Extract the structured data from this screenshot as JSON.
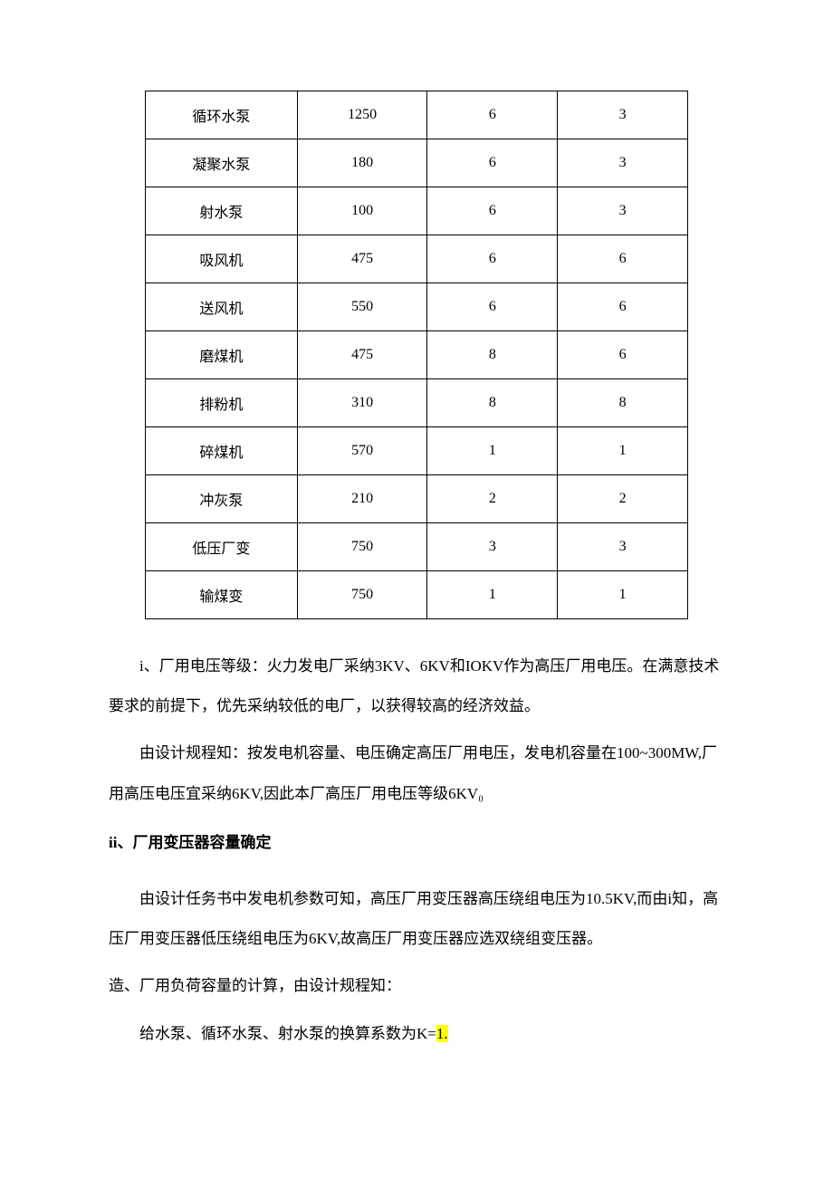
{
  "table": {
    "col_widths": [
      "28%",
      "24%",
      "24%",
      "24%"
    ],
    "rows": [
      [
        "循环水泵",
        "1250",
        "6",
        "3"
      ],
      [
        "凝聚水泵",
        "180",
        "6",
        "3"
      ],
      [
        "射水泵",
        "100",
        "6",
        "3"
      ],
      [
        "吸风机",
        "475",
        "6",
        "6"
      ],
      [
        "送风机",
        "550",
        "6",
        "6"
      ],
      [
        "磨煤机",
        "475",
        "8",
        "6"
      ],
      [
        "排粉机",
        "310",
        "8",
        "8"
      ],
      [
        "碎煤机",
        "570",
        "1",
        "1"
      ],
      [
        "冲灰泵",
        "210",
        "2",
        "2"
      ],
      [
        "低压厂变",
        "750",
        "3",
        "3"
      ],
      [
        "输煤变",
        "750",
        "1",
        "1"
      ]
    ]
  },
  "text": {
    "p1a": "i",
    "p1b": "、厂用电压等级：火力发电厂采纳3KV、6KV和IOKV作为高压厂用电压。在满意技术要求的前提下，优先采纳较低的电厂，以获得较高的经济效益。",
    "p2": "由设计规程知：按发电机容量、电压确定高压厂用电压，发电机容量在100~300MW,厂用高压电压宜采纳6KV,因此本厂高压厂用电压等级6KV₀",
    "h1a": "ii",
    "h1b": "、厂用变压器容量确定",
    "p3": "由设计任务书中发电机参数可知，高压厂用变压器高压绕组电压为10.5KV,而由i知，高压厂用变压器低压绕组电压为6KV,故高压厂用变压器应选双绕组变压器。",
    "p4": "造、厂用负荷容量的计算，由设计规程知：",
    "p5a": "给水泵、循环水泵、射水泵的换算系数为K=",
    "p5b": "1.",
    "colors": {
      "highlight": "#ffff00",
      "text": "#000000",
      "border": "#000000",
      "background": "#ffffff"
    }
  }
}
